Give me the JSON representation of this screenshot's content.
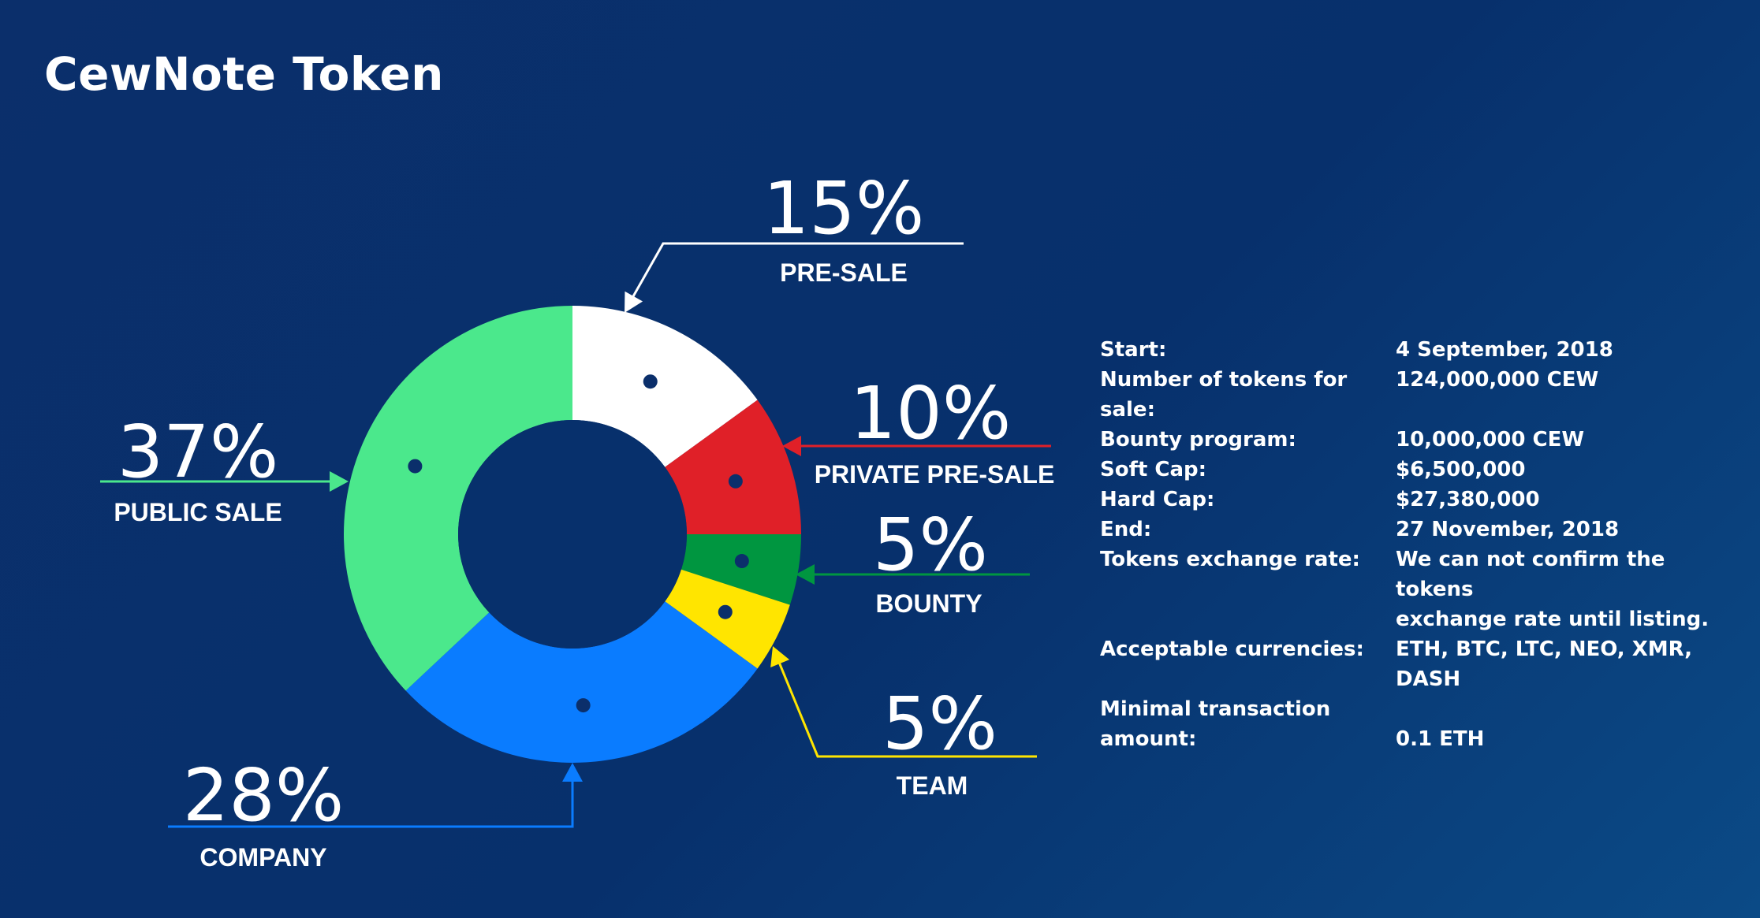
{
  "title": "CewNote Token",
  "chart_data": {
    "type": "pie",
    "hole": true,
    "title": "CewNote Token",
    "slices": [
      {
        "label": "PRE-SALE",
        "value": 15,
        "display": "15%",
        "color": "#ffffff"
      },
      {
        "label": "PRIVATE PRE-SALE",
        "value": 10,
        "display": "10%",
        "color": "#e02028"
      },
      {
        "label": "BOUNTY",
        "value": 5,
        "display": "5%",
        "color": "#009640"
      },
      {
        "label": "TEAM",
        "value": 5,
        "display": "5%",
        "color": "#ffe500"
      },
      {
        "label": "COMPANY",
        "value": 28,
        "display": "28%",
        "color": "#0a7cff"
      },
      {
        "label": "PUBLIC SALE",
        "value": 37,
        "display": "37%",
        "color": "#4be88c"
      }
    ],
    "center_color": "#07306c",
    "marker_color": "#0b2f6b"
  },
  "info": [
    {
      "key": "Start:",
      "value": "4 September, 2018"
    },
    {
      "key": "Number of tokens for sale:",
      "value": "124,000,000 CEW"
    },
    {
      "key": "Bounty program:",
      "value": "10,000,000 CEW"
    },
    {
      "key": "Soft Cap:",
      "value": "$6,500,000"
    },
    {
      "key": "Hard Cap:",
      "value": "$27,380,000"
    },
    {
      "key": "End:",
      "value": "27 November, 2018"
    },
    {
      "key": "Tokens exchange rate:",
      "value": "We can not confirm the tokens"
    },
    {
      "key": "",
      "value": "exchange rate until listing."
    },
    {
      "key": "Acceptable currencies:",
      "value": "ETH, BTC, LTC, NEO, XMR, DASH"
    },
    {
      "key": "Minimal transaction",
      "value": ""
    },
    {
      "key": "amount:",
      "value": "0.1 ETH"
    }
  ]
}
